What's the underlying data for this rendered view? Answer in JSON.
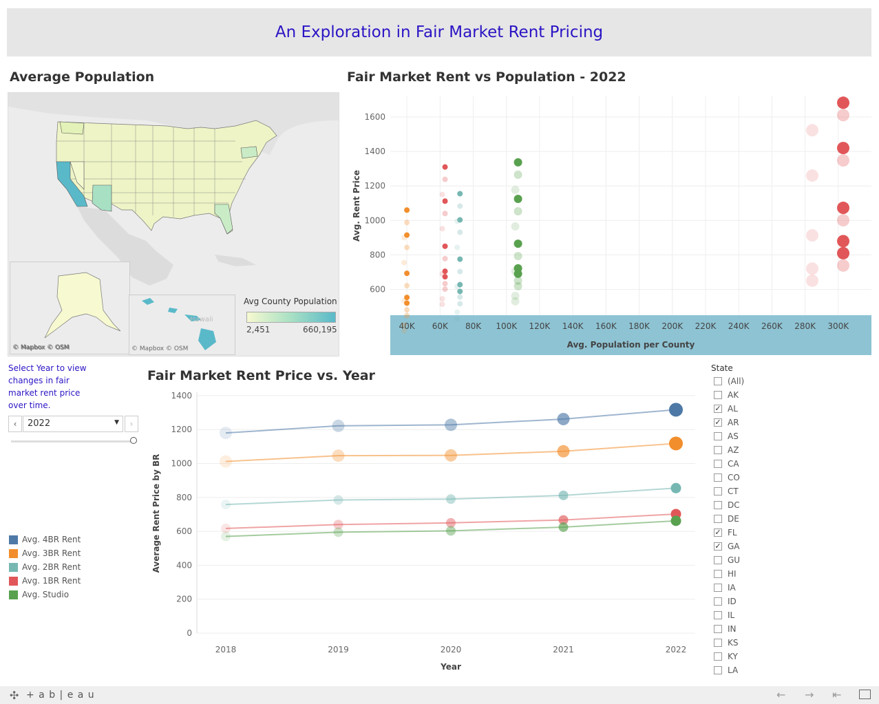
{
  "page": {
    "title": "An Exploration in Fair Market Rent Pricing"
  },
  "map": {
    "title": "Average Population",
    "legend_title": "Avg County Population",
    "legend_min": "2,451",
    "legend_max": "660,195",
    "attribution": "© Mapbox © OSM",
    "hawaii_label": "Hawaii",
    "colors": {
      "low": "#f7f9d0",
      "mid": "#a8e0c4",
      "high": "#5ab9c9"
    }
  },
  "controls": {
    "instruction": "Select Year to view changes in fair market rent price over time.",
    "year_value": "2022"
  },
  "scatter": {
    "title": "Fair Market Rent vs Population - 2022",
    "chart_data": {
      "type": "scatter",
      "xlabel": "Avg. Population per County",
      "ylabel": "Avg. Rent Price",
      "x_ticks": [
        "40K",
        "60K",
        "80K",
        "100K",
        "120K",
        "140K",
        "160K",
        "180K",
        "200K",
        "220K",
        "240K",
        "260K",
        "280K",
        "300K"
      ],
      "y_ticks": [
        600,
        800,
        1000,
        1200,
        1400,
        1600
      ],
      "xlim": [
        30000,
        320000
      ],
      "ylim": [
        450,
        1720
      ],
      "series": [
        {
          "name": "Avg. 4BR Rent",
          "color": "#4e79a7",
          "points": []
        },
        {
          "name": "Avg. 3BR Rent",
          "color": "#f28e2b",
          "points": [
            [
              40000,
              1060
            ],
            [
              40000,
              915
            ],
            [
              40000,
              693
            ],
            [
              40000,
              553
            ],
            [
              40000,
              520
            ]
          ]
        },
        {
          "name": "Avg. 2BR Rent",
          "color": "#76b7b2",
          "points": [
            [
              72000,
              1155
            ],
            [
              72000,
              1003
            ],
            [
              72000,
              775
            ],
            [
              72000,
              627
            ],
            [
              72000,
              588
            ]
          ]
        },
        {
          "name": "Avg. 1BR Rent",
          "color": "#e15759",
          "points": [
            [
              63000,
              1310
            ],
            [
              63000,
              1112
            ],
            [
              63000,
              850
            ],
            [
              63000,
              705
            ],
            [
              63000,
              673
            ],
            [
              303000,
              1683
            ],
            [
              303000,
              1420
            ],
            [
              303000,
              1073
            ],
            [
              303000,
              880
            ],
            [
              303000,
              810
            ]
          ]
        },
        {
          "name": "Avg. Studio",
          "color": "#59a14f",
          "points": [
            [
              107000,
              1337
            ],
            [
              107000,
              1125
            ],
            [
              107000,
              865
            ],
            [
              107000,
              722
            ],
            [
              107000,
              690
            ]
          ]
        }
      ]
    }
  },
  "line": {
    "title": "Fair Market Rent Price vs. Year",
    "chart_data": {
      "type": "line",
      "xlabel": "Year",
      "ylabel": "Average Rent Price by BR",
      "categories": [
        "2018",
        "2019",
        "2020",
        "2021",
        "2022"
      ],
      "y_ticks": [
        0,
        200,
        400,
        600,
        800,
        1000,
        1200,
        1400
      ],
      "ylim": [
        0,
        1420
      ],
      "series": [
        {
          "name": "Avg. 4BR Rent",
          "color": "#4e79a7",
          "values": [
            1180,
            1222,
            1228,
            1262,
            1317
          ]
        },
        {
          "name": "Avg. 3BR Rent",
          "color": "#f28e2b",
          "values": [
            1012,
            1046,
            1048,
            1072,
            1118
          ]
        },
        {
          "name": "Avg. 2BR Rent",
          "color": "#76b7b2",
          "values": [
            758,
            785,
            790,
            812,
            855
          ]
        },
        {
          "name": "Avg. 1BR Rent",
          "color": "#e15759",
          "values": [
            617,
            640,
            650,
            667,
            702
          ]
        },
        {
          "name": "Avg. Studio",
          "color": "#59a14f",
          "values": [
            570,
            595,
            603,
            625,
            662
          ]
        }
      ]
    }
  },
  "filter": {
    "title": "State",
    "states": [
      {
        "label": "(All)",
        "checked": false
      },
      {
        "label": "AK",
        "checked": false
      },
      {
        "label": "AL",
        "checked": true
      },
      {
        "label": "AR",
        "checked": true
      },
      {
        "label": "AS",
        "checked": false
      },
      {
        "label": "AZ",
        "checked": false
      },
      {
        "label": "CA",
        "checked": false
      },
      {
        "label": "CO",
        "checked": false
      },
      {
        "label": "CT",
        "checked": false
      },
      {
        "label": "DC",
        "checked": false
      },
      {
        "label": "DE",
        "checked": false
      },
      {
        "label": "FL",
        "checked": true
      },
      {
        "label": "GA",
        "checked": true
      },
      {
        "label": "GU",
        "checked": false
      },
      {
        "label": "HI",
        "checked": false
      },
      {
        "label": "IA",
        "checked": false
      },
      {
        "label": "ID",
        "checked": false
      },
      {
        "label": "IL",
        "checked": false
      },
      {
        "label": "IN",
        "checked": false
      },
      {
        "label": "KS",
        "checked": false
      },
      {
        "label": "KY",
        "checked": false
      },
      {
        "label": "LA",
        "checked": false
      }
    ]
  },
  "footer": {
    "brand": "+ a b | e a u"
  }
}
